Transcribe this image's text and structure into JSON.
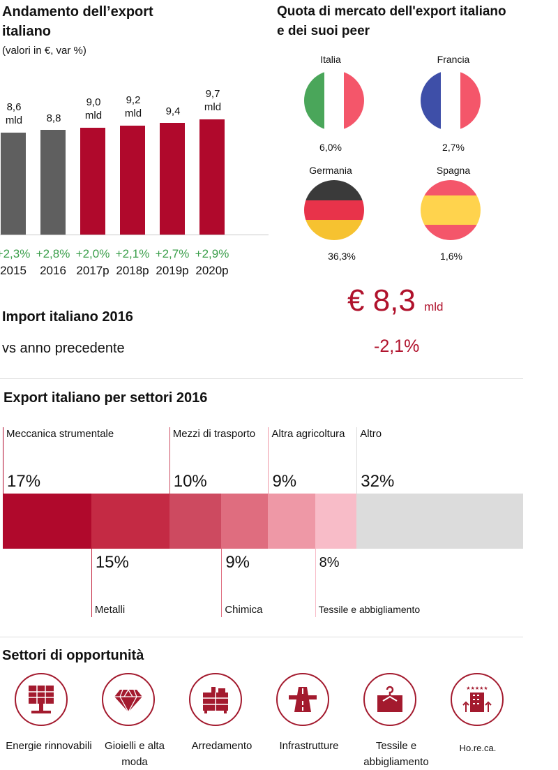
{
  "export": {
    "title_line1": "Andamento dell’export",
    "title_line2": "italiano",
    "subtitle": "(valori in €, var %)"
  },
  "market_share": {
    "title_line1": "Quota di mercato dell'export italiano",
    "title_line2": "e dei suoi peer",
    "countries": [
      {
        "name": "Italia",
        "share": "6,0%",
        "flag": "italy-flag"
      },
      {
        "name": "Francia",
        "share": "2,7%",
        "flag": "france-flag"
      },
      {
        "name": "Germania",
        "share": "36,3%",
        "flag": "germany-flag"
      },
      {
        "name": "Spagna",
        "share": "1,6%",
        "flag": "spain-flag"
      }
    ]
  },
  "import": {
    "title": "Import italiano 2016",
    "label": "vs anno precedente",
    "value": "€ 8,3",
    "unit": "mld",
    "change": "-2,1%"
  },
  "sectors": {
    "title": "Export italiano per settori 2016"
  },
  "opportunities": {
    "title": "Settori di opportunità",
    "items": [
      {
        "label_line1": "Energie rinnovabili",
        "label_line2": "",
        "icon": "solar-panel-icon"
      },
      {
        "label_line1": "Gioielli e alta",
        "label_line2": "moda",
        "icon": "diamond-icon"
      },
      {
        "label_line1": "Arredamento",
        "label_line2": "",
        "icon": "furniture-icon"
      },
      {
        "label_line1": "Infrastrutture",
        "label_line2": "",
        "icon": "road-icon"
      },
      {
        "label_line1": "Tessile e",
        "label_line2": "abbigliamento",
        "icon": "hanger-icon"
      },
      {
        "label_line1": "Ho.re.ca.",
        "label_line2": "",
        "icon": "hotel-icon"
      }
    ]
  },
  "colors": {
    "accent": "#b0122c",
    "actual_bar": "#5f5f5f",
    "forecast_bar": "#b0092c",
    "growth": "#3a9e4a"
  },
  "chart_data": [
    {
      "type": "bar",
      "categories": [
        "2015",
        "2016",
        "2017p",
        "2018p",
        "2019p",
        "2020p"
      ],
      "values": [
        8.6,
        8.8,
        9.0,
        9.2,
        9.4,
        9.7
      ],
      "value_labels": [
        "8,6",
        "8,8",
        "9,0",
        "9,2",
        "9,4",
        "9,7"
      ],
      "unit_labels": [
        "mld",
        "",
        "mld",
        "mld",
        "",
        "mld"
      ],
      "growth_labels": [
        "+2,3%",
        "+2,8%",
        "+2,0%",
        "+2,1%",
        "+2,7%",
        "+2,9%"
      ],
      "ylim": [
        0,
        10
      ]
    },
    {
      "type": "bar",
      "stacked": true,
      "segments": [
        {
          "name": "Meccanica strumentale",
          "value": 17,
          "label": "17%",
          "color": "#b0092c",
          "position": "top"
        },
        {
          "name": "Metalli",
          "value": 15,
          "label": "15%",
          "color": "#c42a44",
          "position": "bottom"
        },
        {
          "name": "Mezzi di trasporto",
          "value": 10,
          "label": "10%",
          "color": "#cd4a60",
          "position": "top"
        },
        {
          "name": "Chimica",
          "value": 9,
          "label": "9%",
          "color": "#df6d7f",
          "position": "bottom"
        },
        {
          "name": "Altra agricoltura",
          "value": 9,
          "label": "9%",
          "color": "#ee98a6",
          "position": "top"
        },
        {
          "name": "Tessile e abbigliamento",
          "value": 8,
          "label": "8%",
          "color": "#f8bcc8",
          "position": "bottom"
        },
        {
          "name": "Altro",
          "value": 32,
          "label": "32%",
          "color": "#dcdcdc",
          "position": "top"
        }
      ]
    }
  ]
}
